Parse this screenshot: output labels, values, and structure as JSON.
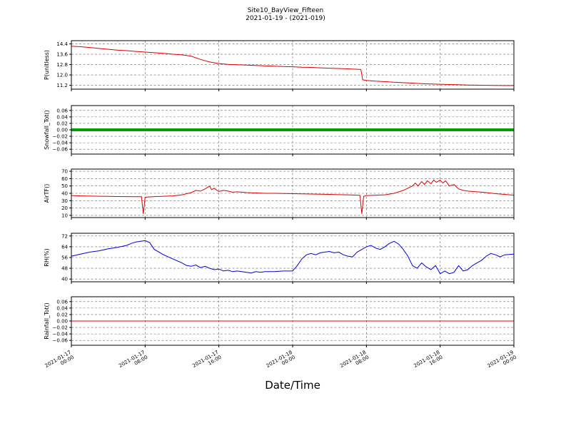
{
  "header": {
    "title": "Site10_BayView_Fifteen",
    "subtitle": "2021-01-19 - (2021-019)"
  },
  "xlabel": "Date/Time",
  "chart_data": {
    "type": "line",
    "x_unit": "hours since 2021-01-17 00:00",
    "xlim": [
      0,
      48
    ],
    "grid": true,
    "x_tick_positions": [
      0,
      8,
      16,
      24,
      32,
      40,
      48
    ],
    "x_tick_labels": [
      [
        "2021-01-17",
        "00:00"
      ],
      [
        "2021-01-17",
        "08:00"
      ],
      [
        "2021-01-17",
        "16:00"
      ],
      [
        "2021-01-18",
        "00:00"
      ],
      [
        "2021-01-18",
        "08:00"
      ],
      [
        "2021-01-18",
        "16:00"
      ],
      [
        "2021-01-19",
        "00:00"
      ]
    ],
    "subplots": [
      {
        "name": "p",
        "ylabel": "P(unitless)",
        "color": "#dd0000",
        "line_width": 1,
        "ylim": [
          10.9,
          14.65
        ],
        "yticks": [
          11.2,
          12.0,
          12.8,
          13.6,
          14.4
        ],
        "ytick_labels": [
          "11.2",
          "12.0",
          "12.8",
          "13.6",
          "14.4"
        ],
        "points": [
          [
            0,
            14.22
          ],
          [
            1,
            14.18
          ],
          [
            2,
            14.12
          ],
          [
            3,
            14.05
          ],
          [
            4,
            13.98
          ],
          [
            5,
            13.92
          ],
          [
            6,
            13.88
          ],
          [
            7,
            13.82
          ],
          [
            8,
            13.77
          ],
          [
            9,
            13.72
          ],
          [
            10,
            13.67
          ],
          [
            11,
            13.6
          ],
          [
            12,
            13.55
          ],
          [
            13,
            13.45
          ],
          [
            14,
            13.2
          ],
          [
            15,
            13.0
          ],
          [
            16,
            12.88
          ],
          [
            17,
            12.82
          ],
          [
            18,
            12.79
          ],
          [
            19,
            12.76
          ],
          [
            20,
            12.73
          ],
          [
            21,
            12.7
          ],
          [
            22,
            12.68
          ],
          [
            23,
            12.65
          ],
          [
            24,
            12.63
          ],
          [
            25,
            12.6
          ],
          [
            26,
            12.58
          ],
          [
            27,
            12.55
          ],
          [
            28,
            12.52
          ],
          [
            29,
            12.5
          ],
          [
            30,
            12.47
          ],
          [
            31,
            12.44
          ],
          [
            31.4,
            12.42
          ],
          [
            31.6,
            11.62
          ],
          [
            32,
            11.58
          ],
          [
            33,
            11.52
          ],
          [
            34,
            11.48
          ],
          [
            35,
            11.44
          ],
          [
            36,
            11.4
          ],
          [
            37,
            11.37
          ],
          [
            38,
            11.33
          ],
          [
            39,
            11.3
          ],
          [
            40,
            11.28
          ],
          [
            41,
            11.26
          ],
          [
            42,
            11.24
          ],
          [
            43,
            11.22
          ],
          [
            44,
            11.21
          ],
          [
            45,
            11.2
          ],
          [
            46,
            11.19
          ],
          [
            47,
            11.18
          ],
          [
            48,
            11.18
          ]
        ]
      },
      {
        "name": "snowfall",
        "ylabel": "Snowfall_Tot()",
        "color": "#00a000",
        "line_width": 4,
        "ylim": [
          -0.075,
          0.075
        ],
        "yticks": [
          -0.06,
          -0.04,
          -0.02,
          0.0,
          0.02,
          0.04,
          0.06
        ],
        "ytick_labels": [
          "−0.06",
          "−0.04",
          "−0.02",
          "0.00",
          "0.02",
          "0.04",
          "0.06"
        ],
        "points": [
          [
            0,
            0
          ],
          [
            48,
            0
          ]
        ]
      },
      {
        "name": "airtf",
        "ylabel": "AirTF()",
        "color": "#dd0000",
        "line_width": 1,
        "ylim": [
          7,
          73
        ],
        "yticks": [
          10,
          20,
          30,
          40,
          50,
          60,
          70
        ],
        "ytick_labels": [
          "10",
          "20",
          "30",
          "40",
          "50",
          "60",
          "70"
        ],
        "points": [
          [
            0,
            37
          ],
          [
            1,
            36.5
          ],
          [
            2,
            36.2
          ],
          [
            3,
            36
          ],
          [
            4,
            35.8
          ],
          [
            5,
            35.6
          ],
          [
            6,
            35.5
          ],
          [
            7,
            35.4
          ],
          [
            7.6,
            35.3
          ],
          [
            7.8,
            12
          ],
          [
            8,
            34.5
          ],
          [
            8.2,
            35
          ],
          [
            9,
            35.5
          ],
          [
            10,
            36
          ],
          [
            11,
            36.5
          ],
          [
            12,
            38
          ],
          [
            13,
            41
          ],
          [
            13.5,
            44
          ],
          [
            14,
            43
          ],
          [
            14.5,
            46
          ],
          [
            15,
            50
          ],
          [
            15.2,
            45
          ],
          [
            15.5,
            47
          ],
          [
            15.8,
            44
          ],
          [
            16,
            42.5
          ],
          [
            16.5,
            44
          ],
          [
            17,
            43
          ],
          [
            17.5,
            41.5
          ],
          [
            18,
            42
          ],
          [
            19,
            41
          ],
          [
            20,
            40.5
          ],
          [
            21,
            40
          ],
          [
            22,
            40
          ],
          [
            23,
            39.8
          ],
          [
            24,
            39.5
          ],
          [
            25,
            39.2
          ],
          [
            26,
            39
          ],
          [
            27,
            38.8
          ],
          [
            28,
            38.5
          ],
          [
            29,
            38.2
          ],
          [
            30,
            38
          ],
          [
            31,
            37.5
          ],
          [
            31.3,
            37.3
          ],
          [
            31.5,
            12
          ],
          [
            31.7,
            36
          ],
          [
            32,
            37
          ],
          [
            33,
            37.5
          ],
          [
            34,
            38
          ],
          [
            35,
            40
          ],
          [
            36,
            44
          ],
          [
            36.5,
            47
          ],
          [
            37,
            50
          ],
          [
            37.3,
            54
          ],
          [
            37.6,
            50
          ],
          [
            38,
            56
          ],
          [
            38.3,
            52
          ],
          [
            38.6,
            57
          ],
          [
            39,
            53
          ],
          [
            39.3,
            58
          ],
          [
            39.6,
            55
          ],
          [
            40,
            58
          ],
          [
            40.3,
            54
          ],
          [
            40.6,
            57
          ],
          [
            41,
            50
          ],
          [
            41.5,
            52
          ],
          [
            42,
            46
          ],
          [
            42.5,
            44
          ],
          [
            43,
            43
          ],
          [
            44,
            42
          ],
          [
            45,
            41
          ],
          [
            46,
            39.5
          ],
          [
            47,
            38.5
          ],
          [
            48,
            37.5
          ]
        ]
      },
      {
        "name": "rh",
        "ylabel": "RH(%)",
        "color": "#0000dd",
        "line_width": 1,
        "ylim": [
          38,
          74
        ],
        "yticks": [
          40,
          48,
          56,
          64,
          72
        ],
        "ytick_labels": [
          "40",
          "48",
          "56",
          "64",
          "72"
        ],
        "points": [
          [
            0,
            57
          ],
          [
            1,
            58.5
          ],
          [
            2,
            60
          ],
          [
            3,
            61
          ],
          [
            4,
            62.5
          ],
          [
            5,
            63.5
          ],
          [
            6,
            65
          ],
          [
            6.5,
            66.5
          ],
          [
            7,
            67.5
          ],
          [
            7.5,
            68
          ],
          [
            8,
            68.5
          ],
          [
            8.5,
            67
          ],
          [
            9,
            62
          ],
          [
            10,
            58
          ],
          [
            11,
            55
          ],
          [
            12,
            52
          ],
          [
            12.5,
            50
          ],
          [
            13,
            49.5
          ],
          [
            13.5,
            50.5
          ],
          [
            14,
            48.5
          ],
          [
            14.5,
            49.5
          ],
          [
            15,
            48
          ],
          [
            15.5,
            47
          ],
          [
            16,
            47.5
          ],
          [
            16.5,
            46
          ],
          [
            17,
            46.5
          ],
          [
            17.5,
            45.5
          ],
          [
            18,
            46
          ],
          [
            19,
            45
          ],
          [
            19.5,
            44.5
          ],
          [
            20,
            45.5
          ],
          [
            20.5,
            45
          ],
          [
            21,
            45.5
          ],
          [
            22,
            45.5
          ],
          [
            23,
            46
          ],
          [
            24,
            46
          ],
          [
            24.5,
            50
          ],
          [
            25,
            55
          ],
          [
            25.5,
            58
          ],
          [
            26,
            59
          ],
          [
            26.5,
            58
          ],
          [
            27,
            59.5
          ],
          [
            27.5,
            60
          ],
          [
            28,
            60.5
          ],
          [
            28.5,
            59.5
          ],
          [
            29,
            60
          ],
          [
            29.5,
            58
          ],
          [
            30,
            57
          ],
          [
            30.5,
            56.5
          ],
          [
            31,
            60
          ],
          [
            31.5,
            62
          ],
          [
            32,
            64
          ],
          [
            32.5,
            65
          ],
          [
            33,
            63
          ],
          [
            33.5,
            62
          ],
          [
            34,
            64
          ],
          [
            34.5,
            66.5
          ],
          [
            35,
            68
          ],
          [
            35.5,
            66
          ],
          [
            36,
            62
          ],
          [
            36.5,
            57
          ],
          [
            37,
            50
          ],
          [
            37.5,
            48
          ],
          [
            38,
            52
          ],
          [
            38.5,
            49
          ],
          [
            39,
            47
          ],
          [
            39.5,
            50
          ],
          [
            40,
            44
          ],
          [
            40.5,
            46
          ],
          [
            41,
            44
          ],
          [
            41.5,
            45
          ],
          [
            42,
            50
          ],
          [
            42.5,
            46
          ],
          [
            43,
            47
          ],
          [
            43.5,
            50
          ],
          [
            44,
            52
          ],
          [
            44.5,
            54
          ],
          [
            45,
            57
          ],
          [
            45.5,
            59
          ],
          [
            46,
            58
          ],
          [
            46.5,
            56.5
          ],
          [
            47,
            58
          ],
          [
            48,
            58.5
          ]
        ]
      },
      {
        "name": "rainfall",
        "ylabel": "Rainfall_Tot()",
        "color": "#ee0000",
        "line_width": 1,
        "ylim": [
          -0.075,
          0.075
        ],
        "yticks": [
          -0.06,
          -0.04,
          -0.02,
          0.0,
          0.02,
          0.04,
          0.06
        ],
        "ytick_labels": [
          "−0.06",
          "−0.04",
          "−0.02",
          "0.00",
          "0.02",
          "0.04",
          "0.06"
        ],
        "points": [
          [
            0,
            0
          ],
          [
            48,
            0
          ]
        ]
      }
    ]
  }
}
